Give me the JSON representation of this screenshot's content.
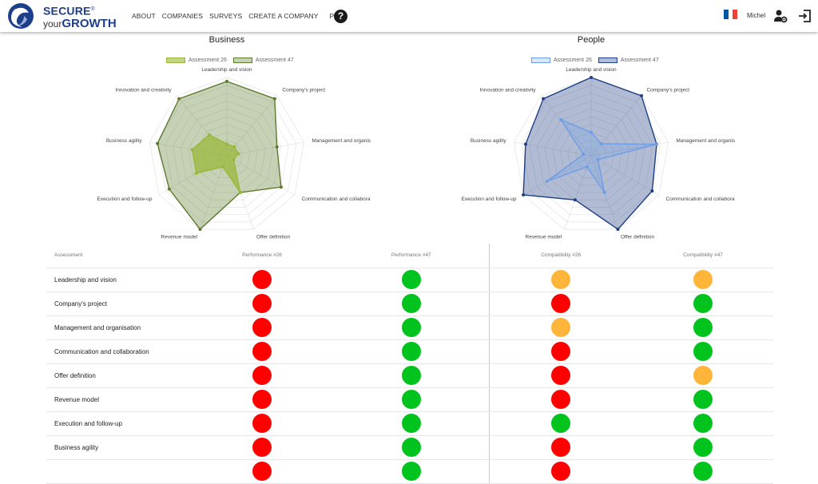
{
  "brand": {
    "secure": "SECURE",
    "reg": "®",
    "your": "your",
    "growth": "GROWTH"
  },
  "nav": {
    "about": "ABOUT",
    "companies": "COMPANIES",
    "surveys": "SURVEYS",
    "create": "CREATE A COMPANY",
    "pdf": "PDF"
  },
  "header": {
    "help": "?",
    "user": "Michel",
    "flag_colors": [
      "#0055a4",
      "#ffffff",
      "#ef4135"
    ]
  },
  "colors": {
    "red": "#ff0000",
    "green": "#00c41d",
    "orange": "#ffb43a",
    "business_26": "#9ab83c",
    "business_47": "#5e7a2f",
    "people_26": "#6d9de6",
    "people_47": "#1f3f84"
  },
  "charts": {
    "business": {
      "title": "Business",
      "legend": [
        "Assessment 26",
        "Assessment 47"
      ]
    },
    "people": {
      "title": "People",
      "legend": [
        "Assessment 26",
        "Assessment 47"
      ]
    }
  },
  "chart_data": [
    {
      "type": "radar",
      "title": "Business",
      "categories": [
        "Leadership and vision",
        "Company's project",
        "Management and organisation",
        "Communication and collaboration",
        "Offer definition",
        "Revenue model",
        "Execution and follow-up",
        "Business agility",
        "Innovation and creativity"
      ],
      "series": [
        {
          "name": "Assessment 26",
          "values": [
            1.5,
            1.5,
            1.5,
            1.0,
            5.0,
            1.5,
            4.5,
            4.5,
            3.5
          ]
        },
        {
          "name": "Assessment 47",
          "values": [
            9.5,
            9.5,
            6.5,
            8.0,
            5.0,
            10.0,
            8.5,
            9.0,
            9.5
          ]
        }
      ],
      "rmax": 10,
      "grid_levels": 10,
      "legend_placement": "top"
    },
    {
      "type": "radar",
      "title": "People",
      "categories": [
        "Leadership and vision",
        "Company's project",
        "Management and organisation",
        "Communication and collaboration",
        "Offer definition",
        "Revenue model",
        "Execution and follow-up",
        "Business agility",
        "Innovation and creativity"
      ],
      "series": [
        {
          "name": "Assessment 26",
          "values": [
            3.0,
            2.0,
            8.5,
            1.0,
            5.0,
            1.5,
            6.5,
            1.0,
            6.0
          ]
        },
        {
          "name": "Assessment 47",
          "values": [
            10.0,
            10.0,
            8.5,
            9.0,
            10.0,
            6.0,
            10.0,
            8.5,
            9.5
          ]
        }
      ],
      "rmax": 10,
      "grid_levels": 10,
      "legend_placement": "top"
    }
  ],
  "table": {
    "headers": [
      "Assessment",
      "Performance #26",
      "Performance #47",
      "Compatibility #26",
      "Compatibility #47"
    ],
    "rows": [
      {
        "name": "Leadership and vision",
        "s": [
          "red",
          "green",
          "orange",
          "orange"
        ]
      },
      {
        "name": "Company's project",
        "s": [
          "red",
          "green",
          "red",
          "green"
        ]
      },
      {
        "name": "Management and organisation",
        "s": [
          "red",
          "green",
          "orange",
          "green"
        ]
      },
      {
        "name": "Communication and collaboration",
        "s": [
          "red",
          "green",
          "red",
          "green"
        ]
      },
      {
        "name": "Offer definition",
        "s": [
          "red",
          "green",
          "red",
          "orange"
        ]
      },
      {
        "name": "Revenue model",
        "s": [
          "red",
          "green",
          "red",
          "green"
        ]
      },
      {
        "name": "Execution and follow-up",
        "s": [
          "red",
          "green",
          "green",
          "green"
        ]
      },
      {
        "name": "Business agility",
        "s": [
          "red",
          "green",
          "red",
          "green"
        ]
      },
      {
        "name": "",
        "s": [
          "red",
          "green",
          "red",
          "green"
        ]
      }
    ]
  }
}
